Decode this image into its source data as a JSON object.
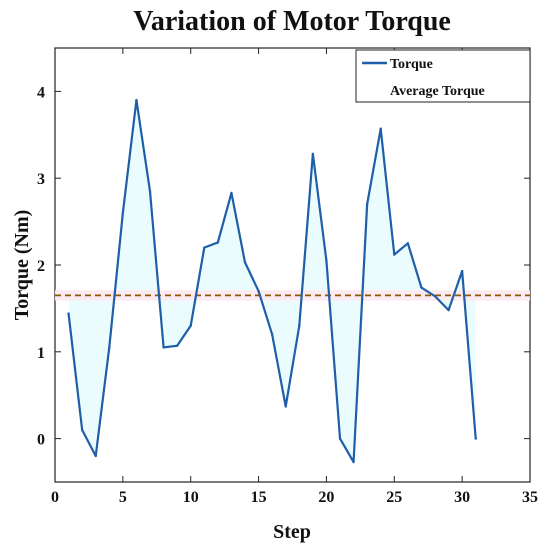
{
  "chart_data": {
    "type": "line",
    "title": "Variation of Motor Torque",
    "xlabel": "Step",
    "ylabel": "Torque  (Nm)",
    "xlim": [
      0,
      35
    ],
    "ylim": [
      -0.5,
      4.5
    ],
    "xticks": [
      0,
      5,
      10,
      15,
      20,
      25,
      30,
      35
    ],
    "yticks": [
      0,
      1,
      2,
      3,
      4
    ],
    "grid": false,
    "legend_position": "top-right",
    "series": [
      {
        "name": "Torque",
        "color": "#1f5ea8",
        "x": [
          1,
          2,
          3,
          4,
          5,
          6,
          7,
          8,
          9,
          10,
          11,
          12,
          13,
          14,
          15,
          16,
          17,
          18,
          19,
          20,
          21,
          22,
          23,
          24,
          25,
          26,
          27,
          28,
          29,
          30,
          31
        ],
        "y": [
          1.44,
          0.1,
          -0.2,
          1.05,
          2.6,
          3.9,
          2.85,
          1.05,
          1.07,
          1.3,
          2.2,
          2.26,
          2.83,
          2.03,
          1.7,
          1.2,
          0.37,
          1.3,
          3.28,
          2.05,
          0.0,
          -0.27,
          2.7,
          3.57,
          2.12,
          2.25,
          1.74,
          1.64,
          1.48,
          1.93,
          0.0
        ]
      },
      {
        "name": "Average Torque",
        "color": "#8b5a00",
        "style": "dashed",
        "y_constant": 1.65
      }
    ]
  }
}
